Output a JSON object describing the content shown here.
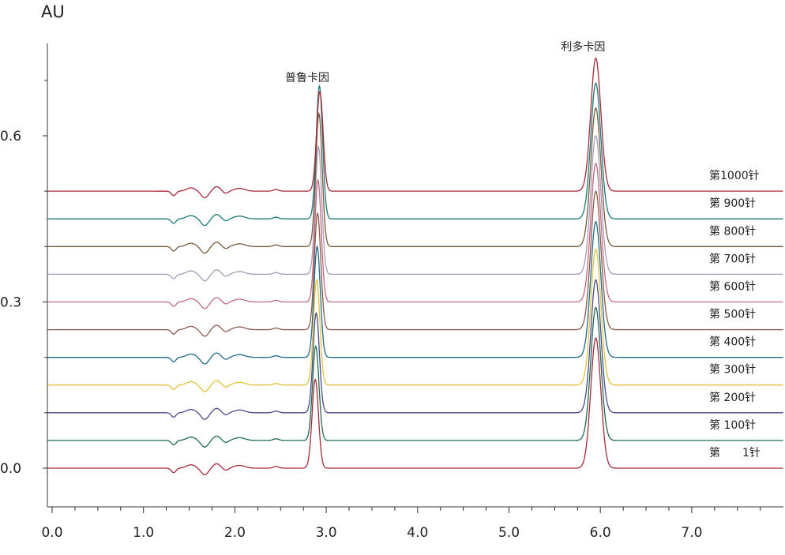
{
  "chart_data": {
    "type": "line",
    "title": "",
    "ylabel": "AU",
    "xlabel": "",
    "xlim": [
      -0.05,
      8.0
    ],
    "ylim": [
      -0.07,
      0.77
    ],
    "x_ticks": [
      0.0,
      1.0,
      2.0,
      3.0,
      4.0,
      5.0,
      6.0,
      7.0
    ],
    "x_tick_labels": [
      "0.0",
      "1.0",
      "2.0",
      "3.0",
      "4.0",
      "5.0",
      "6.0",
      "7.0"
    ],
    "y_ticks": [
      0.0,
      0.3,
      0.6
    ],
    "y_tick_labels": [
      "0.0",
      "0.3",
      "0.6"
    ],
    "grid": false,
    "legend": "right (labels beside each trace)",
    "peaks": [
      {
        "label": "普鲁卡因",
        "x": 2.93
      },
      {
        "label": "利多卡因",
        "x": 5.95
      }
    ],
    "series": [
      {
        "name": "第　　1针",
        "color": "#a52a3a",
        "baseline": 0.0,
        "peak1_height": 0.16,
        "peak2_height": 0.235
      },
      {
        "name": "第 100针",
        "color": "#1e6b4f",
        "baseline": 0.05,
        "peak1_height": 0.17,
        "peak2_height": 0.24
      },
      {
        "name": "第 200针",
        "color": "#4b4a8c",
        "baseline": 0.1,
        "peak1_height": 0.18,
        "peak2_height": 0.24
      },
      {
        "name": "第 300针",
        "color": "#e3c43a",
        "baseline": 0.15,
        "peak1_height": 0.19,
        "peak2_height": 0.245
      },
      {
        "name": "第 400针",
        "color": "#1f6a8a",
        "baseline": 0.2,
        "peak1_height": 0.2,
        "peak2_height": 0.245
      },
      {
        "name": "第 500针",
        "color": "#8b5a4a",
        "baseline": 0.25,
        "peak1_height": 0.21,
        "peak2_height": 0.25
      },
      {
        "name": "第 600针",
        "color": "#c06a80",
        "baseline": 0.3,
        "peak1_height": 0.22,
        "peak2_height": 0.25
      },
      {
        "name": "第 700针",
        "color": "#a89ab8",
        "baseline": 0.35,
        "peak1_height": 0.23,
        "peak2_height": 0.25
      },
      {
        "name": "第 800针",
        "color": "#7a5a3a",
        "baseline": 0.4,
        "peak1_height": 0.24,
        "peak2_height": 0.25
      },
      {
        "name": "第 900针",
        "color": "#1a7a7a",
        "baseline": 0.45,
        "peak1_height": 0.24,
        "peak2_height": 0.245
      },
      {
        "name": "第1000针",
        "color": "#a52a3a",
        "baseline": 0.5,
        "peak1_height": 0.18,
        "peak2_height": 0.24
      }
    ]
  }
}
